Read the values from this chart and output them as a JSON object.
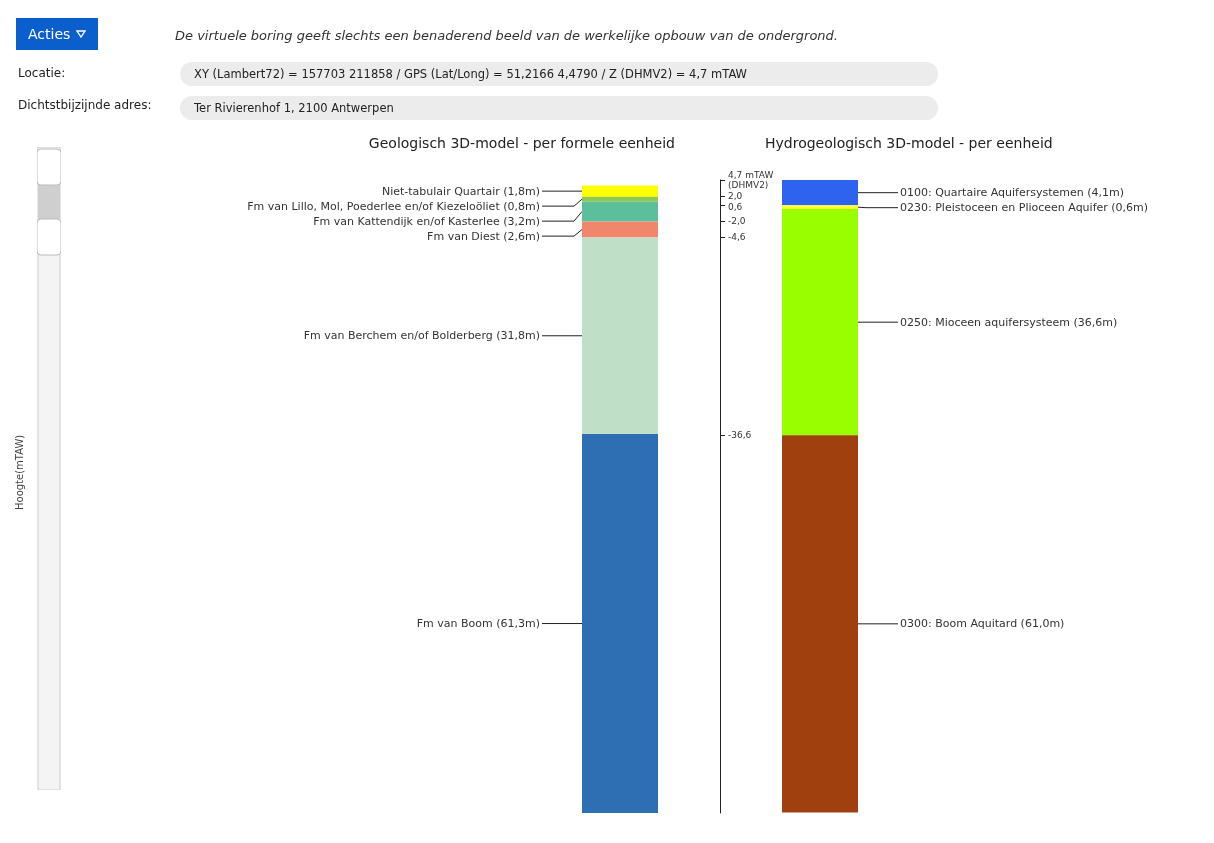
{
  "chart_data": {
    "type": "bar",
    "categories": [
      "Geologisch 3D-model - per formele eenheid",
      "Hydrogeologisch 3D-model - per eenheid"
    ],
    "series": [
      {
        "name": "Niet-tabulair Quartair (1,8m)",
        "color": "#ffff00",
        "values": [
          1.8,
          null
        ],
        "base": [
          2.0,
          null
        ]
      },
      {
        "name": "Fm van Lillo, Mol, Poederlee en/of Kiezeloöliet (0,8m)",
        "color": "#8fc950",
        "values": [
          0.8,
          null
        ],
        "base": [
          1.2,
          null
        ]
      },
      {
        "name": "Fm van Kattendijk en/of Kasterlee (3,2m)",
        "color": "#5cbf9c",
        "values": [
          3.2,
          null
        ],
        "base": [
          -2.0,
          null
        ]
      },
      {
        "name": "Fm van Diest (2,6m)",
        "color": "#f0876c",
        "values": [
          2.6,
          null
        ],
        "base": [
          -4.6,
          null
        ]
      },
      {
        "name": "Fm van Berchem en/of Bolderberg (31,8m)",
        "color": "#bfdfc6",
        "values": [
          31.8,
          null
        ],
        "base": [
          -36.4,
          null
        ]
      },
      {
        "name": "Fm van Boom (61,3m)",
        "color": "#2e6fb4",
        "values": [
          61.3,
          null
        ],
        "base": [
          -97.7,
          null
        ]
      },
      {
        "name": "0100: Quartaire Aquifersystemen (4,1m)",
        "color": "#2e63f0",
        "values": [
          null,
          4.1
        ],
        "base": [
          null,
          0.6
        ]
      },
      {
        "name": "0230: Pleistoceen en Plioceen Aquifer (0,6m)",
        "color": "#ffff33",
        "values": [
          null,
          0.6
        ],
        "base": [
          null,
          0.0
        ]
      },
      {
        "name": "0250: Mioceen aquifersysteem (36,6m)",
        "color": "#99ff00",
        "values": [
          null,
          36.6
        ],
        "base": [
          null,
          -36.6
        ]
      },
      {
        "name": "0300: Boom Aquitard (61,0m)",
        "color": "#a0400f",
        "values": [
          null,
          61.0
        ],
        "base": [
          null,
          -97.6
        ]
      }
    ],
    "ylim": [
      -97.7,
      4.7
    ],
    "yticks": [
      {
        "value": 4.7,
        "label": "4,7 mTAW (DHMV2)"
      },
      {
        "value": 2.0,
        "label": "2,0"
      },
      {
        "value": 0.6,
        "label": "0,6"
      },
      {
        "value": -2.0,
        "label": "-2,0"
      },
      {
        "value": -4.6,
        "label": "-4,6"
      },
      {
        "value": -36.6,
        "label": "-36,6"
      }
    ],
    "annotations": [
      "Acties",
      "De virtuele boring geeft slechts een benaderend beeld van de werkelijke opbouw van de ondergrond.",
      "Locatie:",
      "XY (Lambert72) = 157703 211858 / GPS (Lat/Long) = 51,2166 4,4790 / Z (DHMV2) = 4,7 mTAW",
      "Dichtstbijzijnde adres:",
      "Ter Rivierenhof 1, 2100 Antwerpen",
      "Hoogte(mTAW)"
    ]
  }
}
